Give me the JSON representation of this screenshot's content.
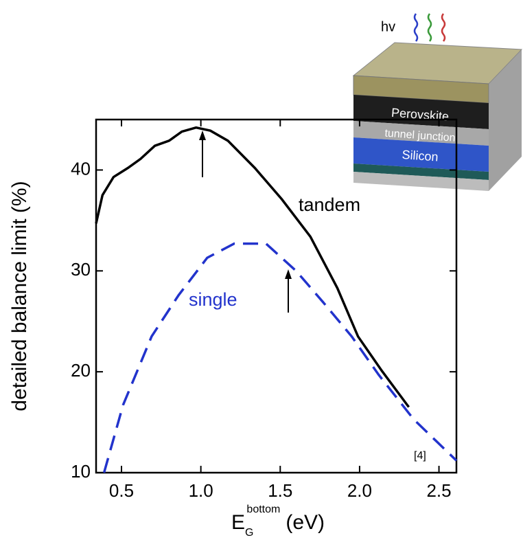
{
  "chart_data": {
    "type": "line",
    "ylabel": "detailed balance limit (%)",
    "xlabel": {
      "main": "E",
      "sub": "G",
      "sup": "bottom",
      "unit": "(eV)"
    },
    "xlim": [
      0.34,
      2.61
    ],
    "ylim": [
      10,
      45
    ],
    "xticks": [
      0.5,
      {
        "value": 1.0,
        "label": "1.0"
      },
      1.5,
      {
        "value": 2.0,
        "label": "2.0"
      },
      2.5
    ],
    "yticks": [
      10,
      20,
      30,
      40
    ],
    "series": [
      {
        "name": "tandem",
        "color": "#000000",
        "dashed": false,
        "x": [
          0.34,
          0.38,
          0.45,
          0.54,
          0.62,
          0.71,
          0.8,
          0.88,
          0.97,
          1.06,
          1.17,
          1.34,
          1.51,
          1.69,
          1.86,
          1.99,
          2.14,
          2.31
        ],
        "values": [
          34.7,
          37.5,
          39.3,
          40.2,
          41.1,
          42.4,
          42.9,
          43.8,
          44.2,
          43.9,
          42.9,
          40.2,
          37.1,
          33.4,
          28.3,
          23.5,
          20.1,
          16.5
        ]
      },
      {
        "name": "single",
        "color": "#2233cc",
        "dashed": true,
        "x": [
          0.39,
          0.51,
          0.69,
          0.86,
          1.04,
          1.21,
          1.41,
          1.6,
          1.77,
          1.95,
          2.12,
          2.34,
          2.61
        ],
        "values": [
          10,
          16.7,
          23.5,
          27.6,
          31.3,
          32.7,
          32.7,
          30.0,
          26.9,
          23.5,
          19.7,
          15.3,
          11.2
        ]
      }
    ],
    "annotation": "[4]"
  },
  "inset": {
    "light": "hv",
    "layers": [
      "Perovskite",
      "tunnel junction",
      "Silicon"
    ]
  }
}
